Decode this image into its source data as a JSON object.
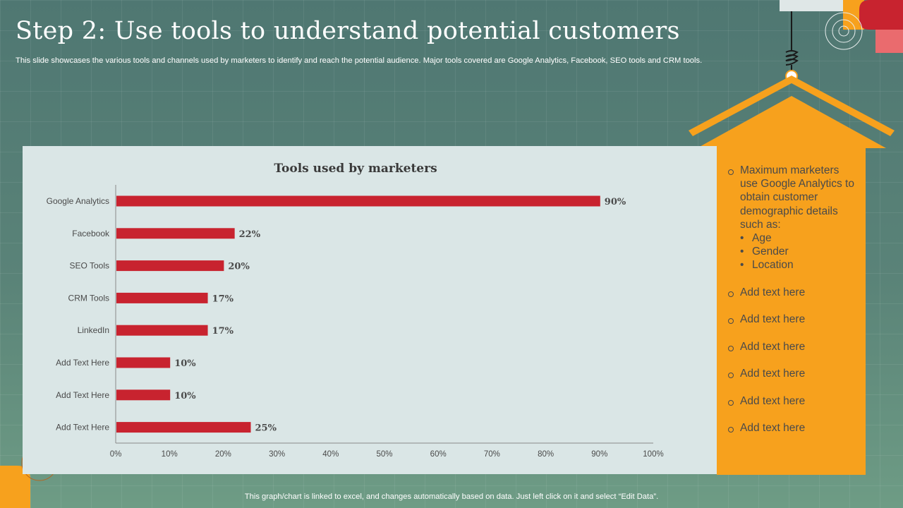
{
  "slide": {
    "title": "Step 2: Use tools to understand potential customers",
    "subtitle": "This slide showcases the various tools and channels used by marketers to identify and reach the potential audience. Major tools covered are Google Analytics, Facebook, SEO tools and CRM tools.",
    "footer": "This graph/chart is linked to excel, and changes automatically based on data. Just left click on it and select “Edit Data”."
  },
  "colors": {
    "background": "#577f77",
    "bar": "#c8232f",
    "accent": "#f7a11d",
    "panel": "#dae6e6"
  },
  "chart_data": {
    "type": "bar",
    "orientation": "horizontal",
    "title": "Tools used by marketers",
    "categories": [
      "Google Analytics",
      "Facebook",
      "SEO Tools",
      "CRM Tools",
      "LinkedIn",
      "Add Text Here",
      "Add Text Here",
      "Add Text Here"
    ],
    "values": [
      90,
      22,
      20,
      17,
      17,
      10,
      10,
      25
    ],
    "value_labels": [
      "90%",
      "22%",
      "20%",
      "17%",
      "17%",
      "10%",
      "10%",
      "25%"
    ],
    "x_ticks": [
      "0%",
      "10%",
      "20%",
      "30%",
      "40%",
      "50%",
      "60%",
      "70%",
      "80%",
      "90%",
      "100%"
    ],
    "xlim": [
      0,
      100
    ],
    "grid": false,
    "legend": "none"
  },
  "side_panel": {
    "main_point": "Maximum marketers use Google Analytics to obtain customer demographic details such as:",
    "sub_points": [
      "Age",
      "Gender",
      "Location"
    ],
    "placeholders": [
      "Add text here",
      "Add text here",
      "Add text here",
      "Add text here",
      "Add text here",
      "Add text here"
    ]
  }
}
